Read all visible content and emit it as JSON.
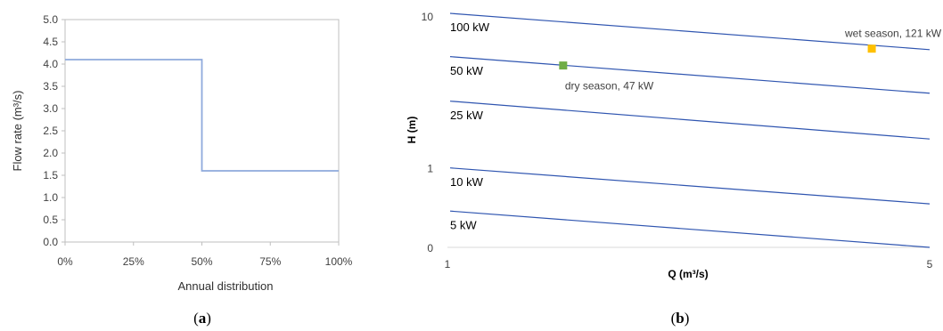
{
  "chart_data": [
    {
      "type": "line",
      "caption": {
        "open": "(",
        "letter": "a",
        "close": ")"
      },
      "xlabel": "Annual distribution",
      "ylabel": "Flow rate  (m³/s)",
      "x_ticks": [
        "0%",
        "25%",
        "50%",
        "75%",
        "100%"
      ],
      "y_ticks": [
        "0.0",
        "0.5",
        "1.0",
        "1.5",
        "2.0",
        "2.5",
        "3.0",
        "3.5",
        "4.0",
        "4.5",
        "5.0"
      ],
      "xlim": [
        0,
        100
      ],
      "ylim": [
        0,
        5
      ],
      "series": [
        {
          "x": [
            0,
            50,
            50,
            100
          ],
          "y": [
            4.1,
            4.1,
            1.6,
            1.6
          ],
          "color": "#8faadc"
        }
      ]
    },
    {
      "type": "line",
      "caption": {
        "open": "(",
        "letter": "b",
        "close": ")"
      },
      "xlabel": "Q (m³/s)",
      "ylabel": "H (m)",
      "x_ticks": [
        "1",
        "5"
      ],
      "y_ticks": [
        "0",
        "1",
        "10"
      ],
      "line_color": "#2f55b0",
      "lines": [
        {
          "label": "100 kW",
          "y_start": 10.4,
          "y_end": 6.0
        },
        {
          "label": "50 kW",
          "y_start": 5.4,
          "y_end": 3.1
        },
        {
          "label": "25 kW",
          "y_start": 2.75,
          "y_end": 1.55
        },
        {
          "label": "10 kW",
          "y_start": 1.0,
          "y_end": 0.58
        },
        {
          "label": "5 kW",
          "y_start": 0.52,
          "y_end": 0.3
        }
      ],
      "points": [
        {
          "label": "dry season, 47 kW",
          "color": "#70ad47"
        },
        {
          "label": "wet season, 121 kW",
          "color": "#ffc000"
        }
      ]
    }
  ]
}
